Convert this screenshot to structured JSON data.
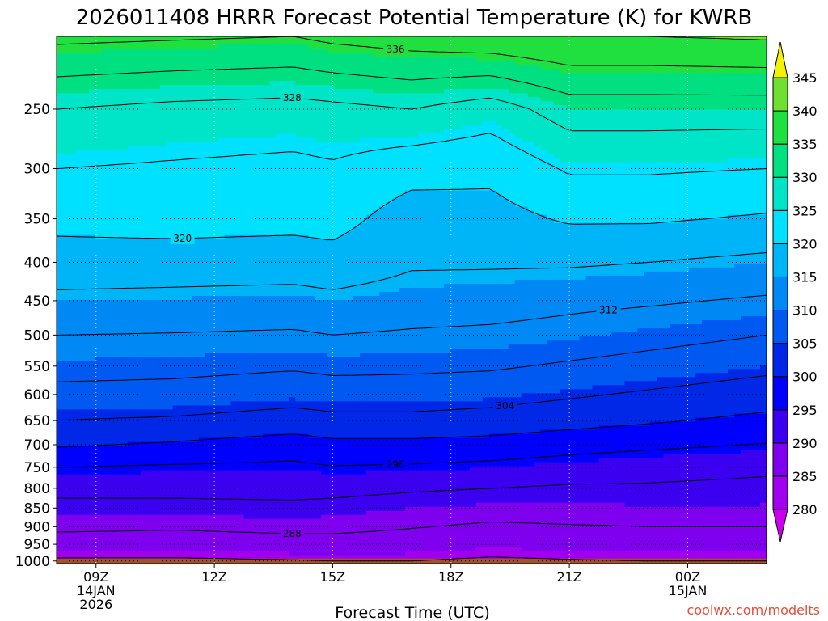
{
  "title": "2026011408 HRRR Forecast Potential Temperature (K) for KWRB",
  "credit": "coolwx.com/modelts",
  "credit_color": "#e0503c",
  "terrain_color": "#a0522d",
  "chart_data": {
    "type": "heatmap",
    "title": "2026011408 HRRR Forecast Potential Temperature (K) for KWRB",
    "xlabel": "Forecast Time (UTC)",
    "ylabel": "",
    "y_scale": "log",
    "x_ticks": [
      {
        "hour": 9,
        "lines": [
          "09Z",
          "14JAN",
          "2026"
        ]
      },
      {
        "hour": 12,
        "lines": [
          "12Z"
        ]
      },
      {
        "hour": 15,
        "lines": [
          "15Z"
        ]
      },
      {
        "hour": 18,
        "lines": [
          "18Z"
        ]
      },
      {
        "hour": 21,
        "lines": [
          "21Z"
        ]
      },
      {
        "hour": 24,
        "lines": [
          "00Z",
          "15JAN"
        ]
      }
    ],
    "xlim": [
      8,
      26
    ],
    "y_ticks": [
      250,
      300,
      350,
      400,
      450,
      500,
      550,
      600,
      650,
      700,
      750,
      800,
      850,
      900,
      950,
      1000
    ],
    "ylim": [
      1008,
      200
    ],
    "grid": true,
    "colorbar": {
      "levels": [
        280,
        285,
        290,
        295,
        300,
        305,
        310,
        315,
        320,
        325,
        330,
        335,
        340,
        345
      ],
      "colors": [
        "#cc00ee",
        "#a000ee",
        "#7f00ee",
        "#3c00f0",
        "#0000ff",
        "#0028e6",
        "#0059f0",
        "#0088f5",
        "#00b4f8",
        "#00e0ff",
        "#00e4c8",
        "#00e080",
        "#20e040",
        "#70e030",
        "#c0ee10",
        "#f2f200"
      ]
    },
    "contour_interval": 4,
    "profiles": [
      {
        "hour": 8.0,
        "pressure": [
          1000,
          950,
          900,
          850,
          800,
          750,
          700,
          650,
          600,
          550,
          500,
          450,
          400,
          350,
          300,
          250,
          200
        ],
        "theta": [
          283.5,
          286.2,
          288.8,
          291.0,
          293.0,
          296.0,
          300.5,
          304.0,
          306.8,
          309.5,
          312.0,
          315.0,
          318.5,
          321.0,
          324.0,
          328.0,
          337.0
        ]
      },
      {
        "hour": 11.0,
        "pressure": [
          1000,
          950,
          900,
          850,
          800,
          750,
          700,
          650,
          600,
          550,
          500,
          450,
          400,
          350,
          300,
          250,
          200
        ],
        "theta": [
          283.5,
          286.0,
          288.5,
          291.0,
          293.0,
          295.5,
          299.5,
          303.5,
          306.5,
          309.2,
          311.8,
          314.8,
          318.2,
          321.5,
          323.5,
          327.0,
          336.5
        ]
      },
      {
        "hour": 14.0,
        "pressure": [
          1000,
          950,
          900,
          850,
          800,
          750,
          700,
          650,
          600,
          550,
          500,
          450,
          400,
          350,
          300,
          250,
          200
        ],
        "theta": [
          283.8,
          286.5,
          289.0,
          291.2,
          293.2,
          295.2,
          298.0,
          302.5,
          305.5,
          308.5,
          311.5,
          314.5,
          318.0,
          321.2,
          323.0,
          326.5,
          336.0
        ]
      },
      {
        "hour": 15.0,
        "pressure": [
          1000,
          950,
          900,
          850,
          800,
          750,
          700,
          650,
          600,
          550,
          500,
          450,
          400,
          350,
          300,
          250,
          200
        ],
        "theta": [
          284.0,
          286.5,
          289.0,
          290.8,
          293.2,
          295.8,
          299.0,
          303.0,
          306.0,
          309.0,
          312.0,
          315.0,
          318.5,
          321.5,
          323.5,
          327.0,
          337.0
        ]
      },
      {
        "hour": 17.0,
        "pressure": [
          1000,
          950,
          900,
          850,
          800,
          750,
          700,
          650,
          600,
          550,
          500,
          450,
          400,
          350,
          300,
          250,
          200
        ],
        "theta": [
          284.0,
          286.2,
          288.2,
          290.0,
          292.5,
          295.5,
          299.0,
          303.0,
          306.0,
          308.8,
          311.5,
          314.2,
          316.5,
          318.0,
          321.5,
          328.0,
          338.0
        ]
      },
      {
        "hour": 19.0,
        "pressure": [
          1000,
          950,
          900,
          850,
          800,
          750,
          700,
          650,
          600,
          550,
          500,
          450,
          400,
          350,
          300,
          250,
          200
        ],
        "theta": [
          283.5,
          285.5,
          287.5,
          289.5,
          292.0,
          295.0,
          298.5,
          302.5,
          305.5,
          308.5,
          311.2,
          313.8,
          316.5,
          318.5,
          321.0,
          326.0,
          339.0
        ]
      },
      {
        "hour": 21.0,
        "pressure": [
          1000,
          950,
          900,
          850,
          800,
          750,
          700,
          650,
          600,
          550,
          500,
          450,
          400,
          350,
          300,
          250,
          200
        ],
        "theta": [
          283.8,
          285.8,
          287.8,
          289.5,
          291.5,
          294.2,
          297.5,
          301.5,
          304.5,
          307.5,
          310.5,
          313.0,
          316.5,
          320.5,
          324.5,
          330.0,
          340.0
        ]
      },
      {
        "hour": 23.0,
        "pressure": [
          1000,
          950,
          900,
          850,
          800,
          750,
          700,
          650,
          600,
          550,
          500,
          450,
          400,
          350,
          300,
          250,
          200
        ],
        "theta": [
          284.0,
          286.0,
          288.0,
          289.8,
          291.5,
          293.5,
          296.8,
          300.5,
          303.5,
          306.5,
          309.5,
          312.5,
          316.0,
          320.5,
          324.5,
          330.0,
          340.0
        ]
      },
      {
        "hour": 26.0,
        "pressure": [
          1000,
          950,
          900,
          850,
          800,
          750,
          700,
          650,
          600,
          550,
          500,
          450,
          400,
          350,
          300,
          250,
          200
        ],
        "theta": [
          284.0,
          286.0,
          288.0,
          289.8,
          291.0,
          292.8,
          295.8,
          299.0,
          302.0,
          305.0,
          308.0,
          311.5,
          315.0,
          319.5,
          324.0,
          330.0,
          340.5
        ]
      }
    ]
  }
}
